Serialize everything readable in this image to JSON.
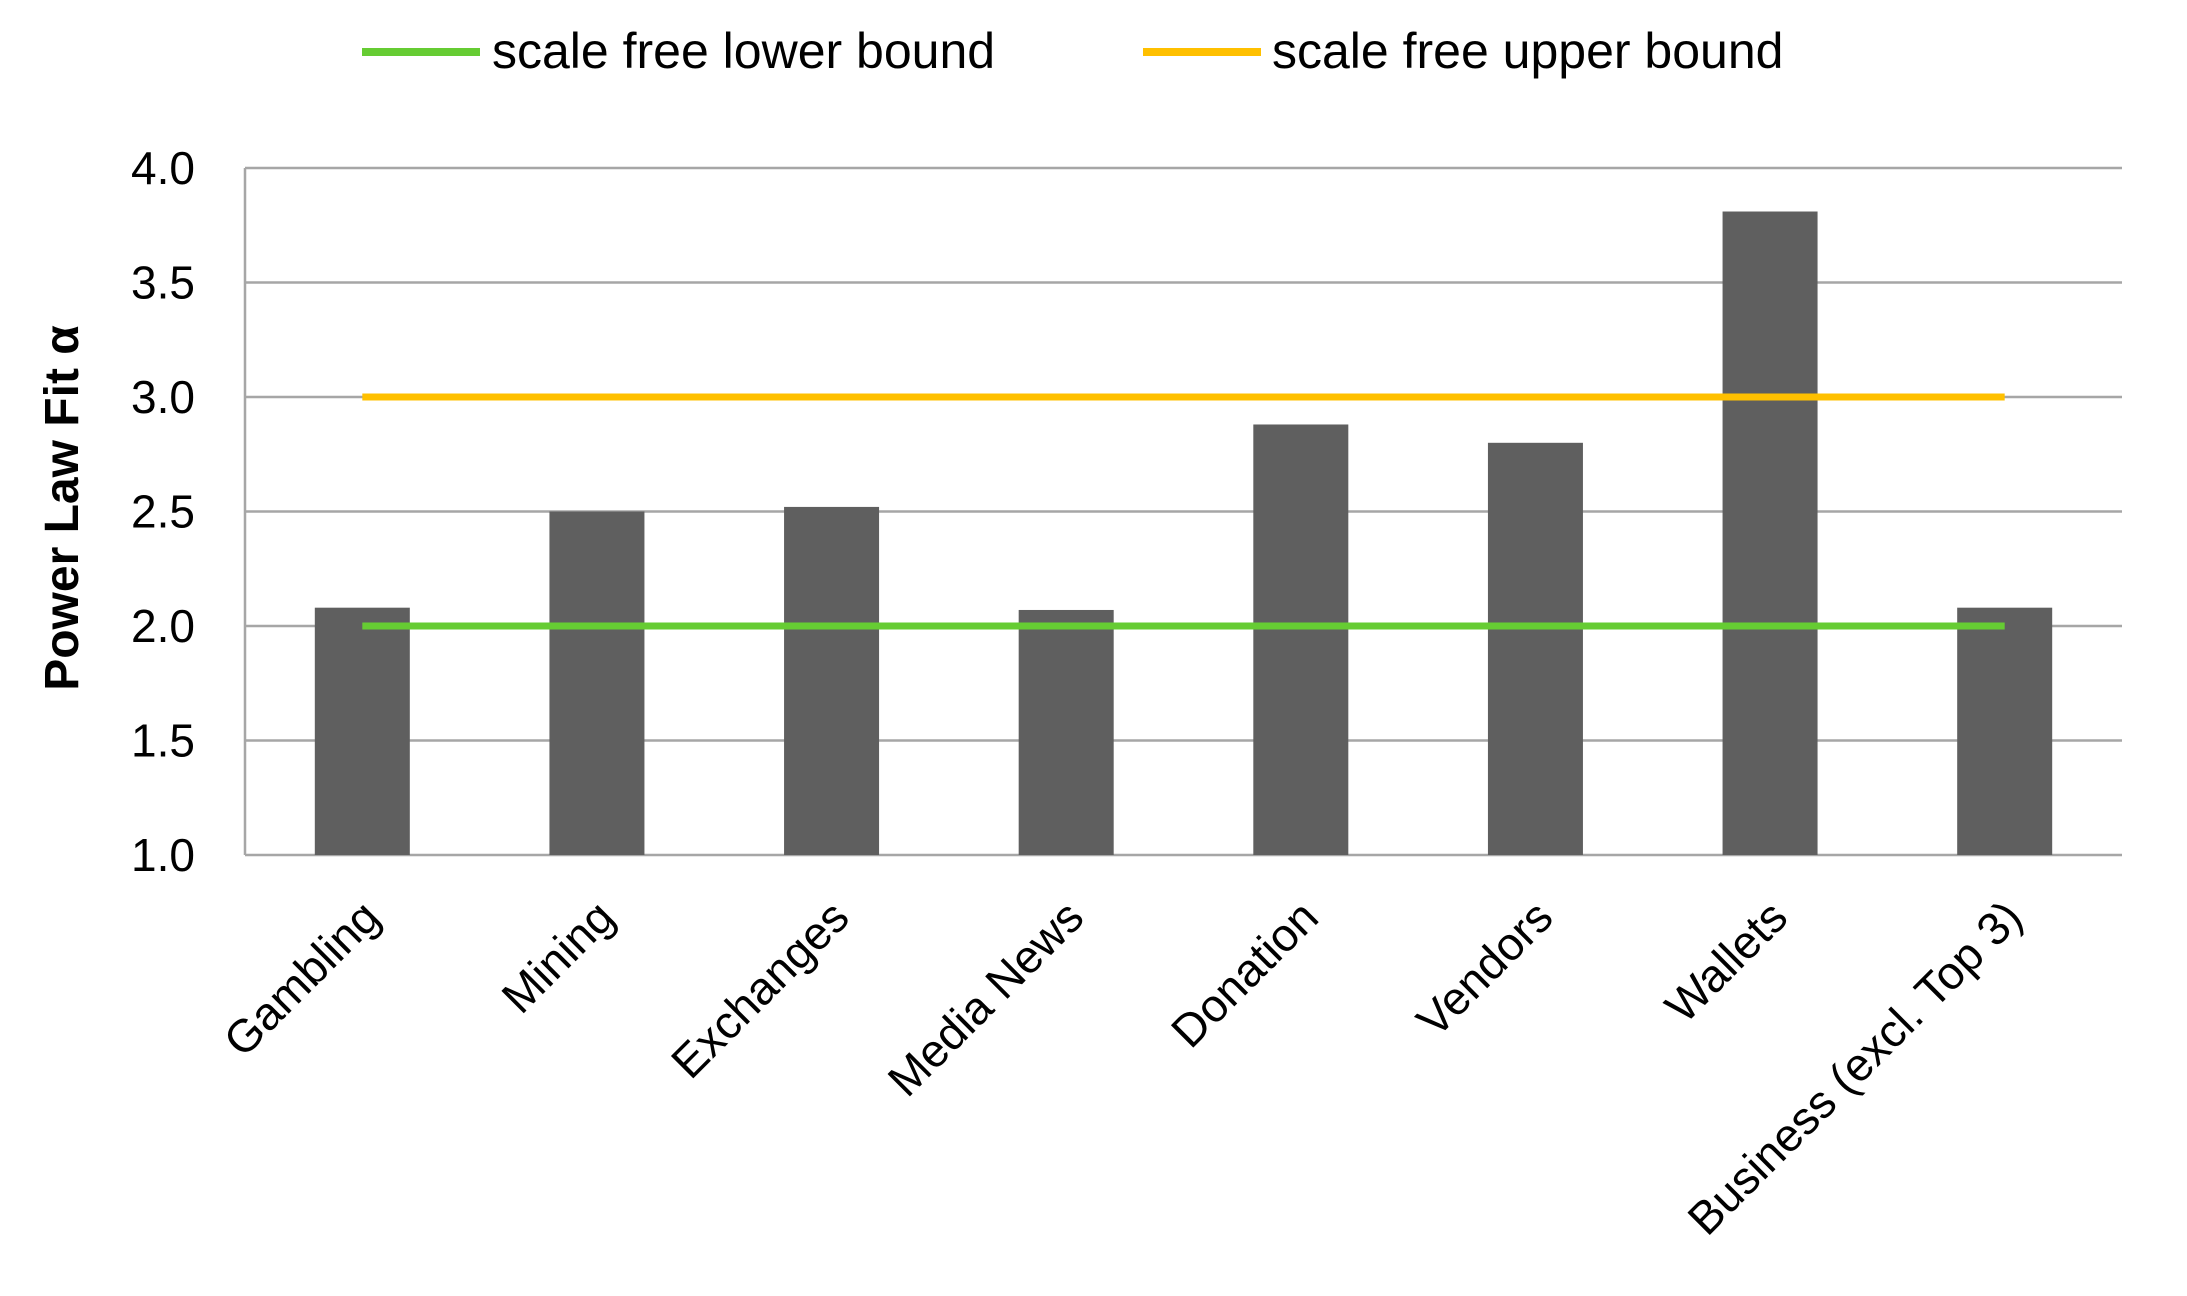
{
  "chart_data": {
    "type": "bar",
    "title": "",
    "xlabel": "",
    "ylabel": "Power Law Fit α",
    "ylim": [
      1.0,
      4.0
    ],
    "yticks": [
      "1.0",
      "1.5",
      "2.0",
      "2.5",
      "3.0",
      "3.5",
      "4.0"
    ],
    "ytick_values": [
      1.0,
      1.5,
      2.0,
      2.5,
      3.0,
      3.5,
      4.0
    ],
    "grid": true,
    "legend_position": "top",
    "categories": [
      "Gambling",
      "Mining",
      "Exchanges",
      "Media News",
      "Donation",
      "Vendors",
      "Wallets",
      "Business (excl. Top 3)"
    ],
    "values": [
      2.08,
      2.5,
      2.52,
      2.07,
      2.88,
      2.8,
      3.81,
      2.08
    ],
    "bar_color": "#5f5f5f",
    "reference_lines": [
      {
        "name": "scale free lower bound",
        "value": 2.0,
        "color": "#66cc33"
      },
      {
        "name": "scale free upper bound",
        "value": 3.0,
        "color": "#ffc000"
      }
    ]
  }
}
